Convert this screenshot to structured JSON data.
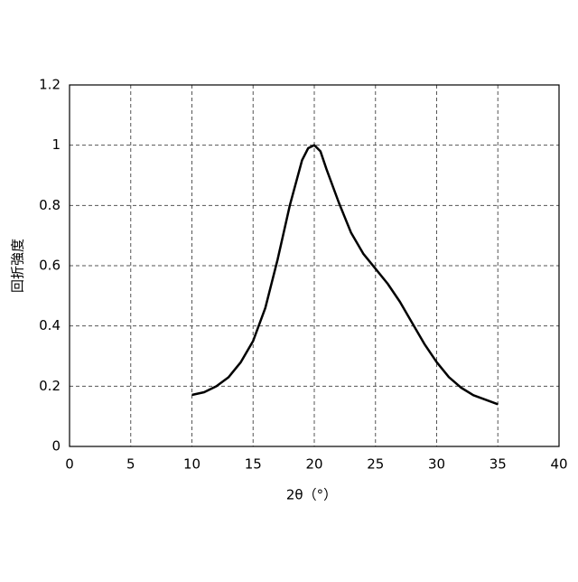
{
  "chart_data": {
    "type": "line",
    "x_label": "2θ（°）",
    "y_label": "回折強度",
    "x": [
      10,
      11,
      12,
      13,
      14,
      15,
      16,
      17,
      18,
      19,
      19.5,
      20,
      20.5,
      21,
      22,
      23,
      24,
      25,
      26,
      27,
      28,
      29,
      30,
      31,
      32,
      33,
      34,
      35
    ],
    "series": [
      {
        "color": "#000000",
        "values": [
          0.171,
          0.18,
          0.2,
          0.23,
          0.28,
          0.35,
          0.46,
          0.62,
          0.8,
          0.95,
          0.99,
          1.0,
          0.98,
          0.92,
          0.81,
          0.71,
          0.64,
          0.59,
          0.54,
          0.48,
          0.41,
          0.34,
          0.28,
          0.23,
          0.195,
          0.17,
          0.155,
          0.14
        ]
      }
    ],
    "xlim": [
      0,
      40
    ],
    "xticks": [
      0,
      5,
      10,
      15,
      20,
      25,
      30,
      35,
      40
    ],
    "ylim": [
      0,
      1.2
    ],
    "yticks": [
      0,
      0.2,
      0.4,
      0.6,
      0.8,
      1,
      1.2
    ],
    "grid": true
  }
}
